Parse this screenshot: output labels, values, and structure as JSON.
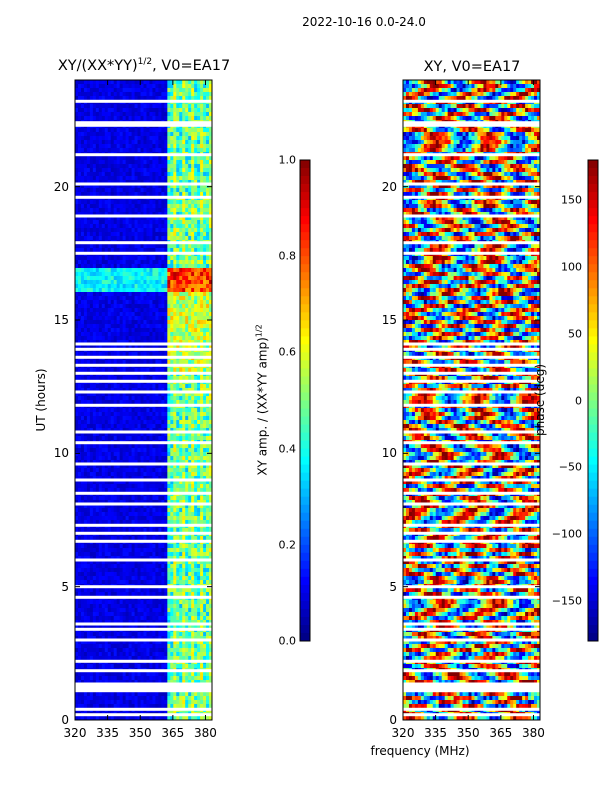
{
  "figure": {
    "suptitle": "2022-10-16 0.0-24.0",
    "shared_xlabel": "frequency (MHz)"
  },
  "chart_data": [
    {
      "type": "heatmap",
      "title": "XY/(XX*YY)",
      "title_exponent": "1/2",
      "title_suffix": ", V0=EA17",
      "xlabel": "",
      "ylabel": "UT (hours)",
      "x_range": [
        320,
        383
      ],
      "x_ticks": [
        320,
        335,
        350,
        365,
        380
      ],
      "y_range": [
        0,
        24
      ],
      "y_ticks": [
        0,
        5,
        10,
        15,
        20
      ],
      "colormap": "jet",
      "colorbar": {
        "label": "XY amp. / (XX*YY amp)",
        "label_exponent": "1/2",
        "range": [
          0.0,
          1.0
        ],
        "ticks": [
          "0.0",
          "0.2",
          "0.4",
          "0.6",
          "0.8",
          "1.0"
        ]
      },
      "description": "normalized cross-correlation amplitude vs frequency and UT; mostly low (~0.05) with a high-amplitude band at 363-383 MHz and a bright feature near 16.3-17 UT",
      "bright_band_mhz": [
        363,
        383
      ],
      "bright_feature_ut": [
        16.0,
        17.0
      ],
      "data_gaps_ut": [
        0.2,
        0.4,
        1.1,
        1.15,
        1.25,
        1.35,
        1.85,
        2.2,
        3.0,
        3.4,
        3.6,
        4.6,
        5.0,
        6.0,
        6.7,
        7.0,
        7.3,
        8.1,
        8.5,
        9.0,
        9.6,
        10.4,
        10.8,
        11.8,
        12.3,
        12.7,
        13.0,
        13.3,
        13.6,
        13.9,
        14.1,
        17.5,
        17.9,
        18.9,
        19.6,
        20.1,
        21.2,
        22.3,
        22.4,
        23.2
      ]
    },
    {
      "type": "heatmap",
      "title": "XY, V0=EA17",
      "xlabel": "frequency (MHz)",
      "ylabel": "",
      "x_range": [
        320,
        383
      ],
      "x_ticks": [
        320,
        335,
        350,
        365,
        380
      ],
      "y_range": [
        0,
        24
      ],
      "y_ticks": [
        0,
        5,
        10,
        15,
        20
      ],
      "colormap": "jet",
      "colorbar": {
        "label": "phase (deg)",
        "range": [
          -180,
          180
        ],
        "ticks": [
          "−150",
          "−100",
          "−50",
          "0",
          "50",
          "100",
          "150"
        ]
      },
      "description": "cross-correlation phase in degrees; noisy mixture of all phases with horizontal streaks",
      "data_gaps_ut": [
        0.2,
        0.4,
        1.1,
        1.15,
        1.25,
        1.35,
        1.85,
        2.2,
        3.0,
        3.4,
        3.6,
        4.6,
        5.0,
        6.0,
        6.7,
        7.0,
        7.3,
        8.1,
        8.5,
        9.0,
        9.6,
        10.4,
        10.8,
        11.8,
        12.3,
        12.7,
        13.0,
        13.3,
        13.6,
        13.9,
        14.1,
        17.5,
        17.9,
        18.9,
        19.6,
        20.1,
        21.2,
        22.3,
        22.4,
        23.2
      ]
    }
  ]
}
